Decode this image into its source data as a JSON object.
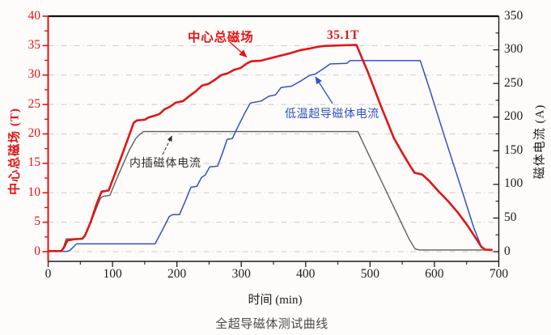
{
  "figure": {
    "caption": "全超导磁体测试曲线"
  },
  "chart_data": {
    "type": "line",
    "xlabel": "时间 (min)",
    "ylabel_left": "中心总磁场 (T)",
    "ylabel_right": "磁体电流 (A)",
    "x_range": [
      0,
      700
    ],
    "x_ticks": [
      0,
      100,
      200,
      300,
      400,
      500,
      600,
      700
    ],
    "x_minor_step": 50,
    "y_left_range": [
      -1.65,
      40
    ],
    "y_left_ticks": [
      0,
      5,
      10,
      15,
      20,
      25,
      30,
      35,
      40
    ],
    "y_left_minor_step": 2.5,
    "y_right_range": [
      -14.4,
      350
    ],
    "y_right_ticks": [
      0,
      50,
      100,
      150,
      200,
      250,
      300,
      350
    ],
    "y_right_minor_step": 25,
    "grid": "horizontal dash-dot at every 5 T",
    "legend_position": "inline annotations",
    "colors": {
      "field": "#e01616",
      "lts_current": "#2f52c4",
      "insert_current": "#5e5e5e",
      "grid": "#c9c9c9",
      "frame": "#1d1d1d"
    },
    "series": [
      {
        "name": "中心总磁场",
        "axis": "left",
        "unit": "T",
        "color_key": "field",
        "width": 2.6,
        "points": [
          [
            0,
            0.1
          ],
          [
            20,
            0.1
          ],
          [
            24,
            0.6
          ],
          [
            30,
            1.9
          ],
          [
            40,
            2.1
          ],
          [
            53,
            2.2
          ],
          [
            57,
            2.7
          ],
          [
            66,
            5.0
          ],
          [
            74,
            7.7
          ],
          [
            80,
            9.4
          ],
          [
            83,
            10.2
          ],
          [
            94,
            10.4
          ],
          [
            104,
            13.3
          ],
          [
            115,
            16.5
          ],
          [
            125,
            19.5
          ],
          [
            133,
            21.9
          ],
          [
            138,
            22.3
          ],
          [
            150,
            22.4
          ],
          [
            156,
            22.8
          ],
          [
            166,
            23.1
          ],
          [
            173,
            23.4
          ],
          [
            181,
            24.2
          ],
          [
            189,
            24.6
          ],
          [
            198,
            25.3
          ],
          [
            210,
            25.6
          ],
          [
            219,
            26.4
          ],
          [
            229,
            27.2
          ],
          [
            239,
            28.2
          ],
          [
            249,
            28.5
          ],
          [
            259,
            29.2
          ],
          [
            269,
            30.0
          ],
          [
            279,
            30.3
          ],
          [
            289,
            30.9
          ],
          [
            299,
            31.2
          ],
          [
            309,
            32.0
          ],
          [
            316,
            32.35
          ],
          [
            331,
            32.45
          ],
          [
            346,
            32.9
          ],
          [
            361,
            33.3
          ],
          [
            376,
            33.7
          ],
          [
            391,
            34.2
          ],
          [
            406,
            34.5
          ],
          [
            419,
            34.8
          ],
          [
            430,
            34.95
          ],
          [
            443,
            35.0
          ],
          [
            456,
            35.05
          ],
          [
            479,
            35.1
          ],
          [
            497,
            30.4
          ],
          [
            517,
            24.7
          ],
          [
            537,
            19.3
          ],
          [
            549,
            17.0
          ],
          [
            562,
            14.6
          ],
          [
            569,
            13.4
          ],
          [
            581,
            13.1
          ],
          [
            592,
            12.0
          ],
          [
            606,
            10.3
          ],
          [
            621,
            8.6
          ],
          [
            636,
            6.7
          ],
          [
            651,
            4.5
          ],
          [
            663,
            2.5
          ],
          [
            673,
            0.8
          ],
          [
            679,
            0.35
          ],
          [
            689,
            0.3
          ]
        ]
      },
      {
        "name": "低温超导磁体电流",
        "axis": "right",
        "unit": "A",
        "color_key": "lts_current",
        "width": 1.5,
        "points": [
          [
            0,
            0.5
          ],
          [
            30,
            0.5
          ],
          [
            34,
            2
          ],
          [
            44,
            11.5
          ],
          [
            166,
            11.5
          ],
          [
            178,
            33
          ],
          [
            188,
            52
          ],
          [
            193,
            55
          ],
          [
            204,
            55
          ],
          [
            213,
            75
          ],
          [
            222,
            96
          ],
          [
            231,
            97
          ],
          [
            238,
            110
          ],
          [
            244,
            114
          ],
          [
            251,
            126
          ],
          [
            263,
            127
          ],
          [
            271,
            147
          ],
          [
            278,
            167
          ],
          [
            286,
            168
          ],
          [
            296,
            188
          ],
          [
            306,
            207
          ],
          [
            314,
            221
          ],
          [
            331,
            224
          ],
          [
            343,
            231
          ],
          [
            353,
            233
          ],
          [
            362,
            244
          ],
          [
            378,
            246
          ],
          [
            393,
            254
          ],
          [
            406,
            262
          ],
          [
            415,
            264
          ],
          [
            426,
            271
          ],
          [
            438,
            279
          ],
          [
            464,
            280
          ],
          [
            469,
            284
          ],
          [
            578,
            284
          ],
          [
            593,
            240
          ],
          [
            616,
            170
          ],
          [
            641,
            96
          ],
          [
            661,
            36
          ],
          [
            673,
            7
          ],
          [
            679,
            3
          ],
          [
            689,
            2.5
          ]
        ]
      },
      {
        "name": "内插磁体电流",
        "axis": "right",
        "unit": "A",
        "color_key": "insert_current",
        "width": 1.4,
        "points": [
          [
            0,
            0.5
          ],
          [
            20,
            0.5
          ],
          [
            23,
            4
          ],
          [
            28,
            19
          ],
          [
            54,
            19
          ],
          [
            58,
            24
          ],
          [
            67,
            45
          ],
          [
            76,
            67
          ],
          [
            81,
            79
          ],
          [
            85,
            82
          ],
          [
            96,
            84
          ],
          [
            106,
            107
          ],
          [
            116,
            129
          ],
          [
            126,
            151
          ],
          [
            136,
            168
          ],
          [
            142,
            174
          ],
          [
            148,
            178.5
          ],
          [
            481,
            178.5
          ],
          [
            501,
            138
          ],
          [
            521,
            98
          ],
          [
            541,
            58
          ],
          [
            561,
            18
          ],
          [
            570,
            4
          ],
          [
            577,
            2.5
          ],
          [
            689,
            2.5
          ]
        ]
      }
    ],
    "annotations": [
      {
        "id": "field",
        "text": "中心总磁场",
        "color": "#e01616",
        "bold": true,
        "points_to": "red total-field curve"
      },
      {
        "id": "peak",
        "text": "35.1T",
        "color": "#e01616",
        "bold": true,
        "points_to": "peak of red curve"
      },
      {
        "id": "lts",
        "text": "低温超导磁体电流",
        "color": "#2f52c4",
        "bold": false,
        "points_to": "blue LTS magnet current curve"
      },
      {
        "id": "insert",
        "text": "内插磁体电流",
        "color": "#303030",
        "bold": false,
        "points_to": "gray insert magnet current curve"
      }
    ]
  }
}
